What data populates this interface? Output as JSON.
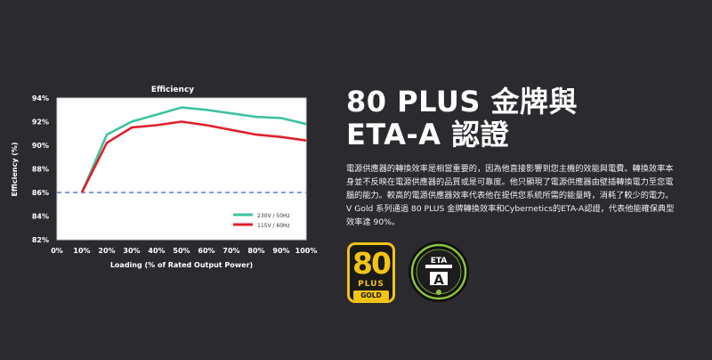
{
  "chart_data": {
    "type": "line",
    "title": "Efficiency",
    "xlabel": "Loading (% of Rated Output Power)",
    "ylabel": "Efficiency (%)",
    "x": [
      10,
      20,
      30,
      40,
      50,
      60,
      70,
      80,
      90,
      100
    ],
    "xticks": [
      "0%",
      "10%",
      "20%",
      "30%",
      "40%",
      "50%",
      "60%",
      "70%",
      "80%",
      "90%",
      "100%"
    ],
    "yticks": [
      "82%",
      "84%",
      "86%",
      "88%",
      "90%",
      "92%",
      "94%"
    ],
    "xlim": [
      0,
      100
    ],
    "ylim": [
      82,
      94
    ],
    "grid": false,
    "legend_position": "inside-lower-right",
    "reference_line": 86,
    "series": [
      {
        "name": "230V / 50Hz",
        "color": "#3cc2a0",
        "values": [
          86,
          90.9,
          92.0,
          92.6,
          93.2,
          93.0,
          92.7,
          92.4,
          92.3,
          91.8
        ]
      },
      {
        "name": "115V / 60Hz",
        "color": "#e0202b",
        "values": [
          86,
          90.2,
          91.5,
          91.7,
          92.0,
          91.7,
          91.3,
          90.9,
          90.7,
          90.4
        ]
      }
    ]
  },
  "heading": {
    "line1": "80 PLUS 金牌與",
    "line2": "ETA-A 認證"
  },
  "description": {
    "lines": [
      "電源供應器的轉換效率是相當重要的，因為他直接影響到您主機的效能與電費。轉換效率本",
      "身並不反映在電源供應器的品質或是可靠度。他只顯現了電源供應器由壁插轉換電力至您電",
      "腦的能力。較高的電源供應器效率代表他在提供您系統所需的能量時，消耗了較少的電力。",
      "V Gold 系列通過 80 PLUS 金牌轉換效率和Cybernetics的ETA-A認證，代表他能確保典型",
      "效率達 90%。"
    ]
  },
  "badges": {
    "plus80": {
      "number": "80",
      "plus": "PLUS",
      "tier": "GOLD",
      "color": "#f3c316"
    },
    "eta": {
      "top": "ETA",
      "grade": "A",
      "color": "#8cc63f"
    }
  }
}
